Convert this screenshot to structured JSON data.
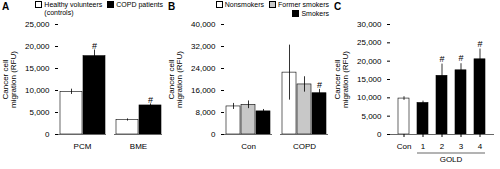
{
  "chart_data": [
    {
      "type": "bar",
      "title": "A",
      "categories": [
        "PCM",
        "BME"
      ],
      "series": [
        {
          "name": "Healthy volunteers\n(controls)",
          "color": "white",
          "values": [
            9700,
            3300
          ],
          "errors": [
            600,
            250
          ]
        },
        {
          "name": "COPD patients",
          "color": "black",
          "values": [
            17800,
            6600
          ],
          "errors": [
            1400,
            350
          ]
        }
      ],
      "ylabel": "Cancer cell\nmigration (RFU)",
      "ylim": [
        0,
        25000
      ],
      "yticks": [
        0,
        {
          "value": 5000,
          "label": "5,000"
        },
        {
          "value": 10000,
          "label": "10,000"
        },
        {
          "value": 15000,
          "label": "15,000"
        },
        {
          "value": 20000,
          "label": "20,000"
        },
        {
          "value": 25000,
          "label": "25,000"
        }
      ],
      "legend": "upper right",
      "annotations": [
        {
          "text": "#",
          "category": "PCM",
          "series": "COPD patients",
          "y": 19200
        },
        {
          "text": "#",
          "category": "BME",
          "series": "COPD patients",
          "y": 6950
        }
      ]
    },
    {
      "type": "bar",
      "title": "B",
      "categories": [
        "Con",
        "COPD"
      ],
      "series": [
        {
          "name": "Nonsmokers",
          "color": "white",
          "values": [
            10200,
            22500
          ],
          "errors": [
            1100,
            10000
          ]
        },
        {
          "name": "Former smokers",
          "color": "#c8c8c8",
          "values": [
            10800,
            18200
          ],
          "errors": [
            1400,
            2800
          ]
        },
        {
          "name": "Smokers",
          "color": "black",
          "values": [
            8400,
            15000
          ],
          "errors": [
            700,
            1400
          ]
        }
      ],
      "ylabel": "Cancer cell\nmigration (RFU)",
      "ylim": [
        0,
        40000
      ],
      "yticks": [
        0,
        {
          "value": 8000,
          "label": "8,000"
        },
        {
          "value": 16000,
          "label": "16,000"
        },
        {
          "value": 24000,
          "label": "24,000"
        },
        {
          "value": 32000,
          "label": "32,000"
        },
        {
          "value": 40000,
          "label": "40,000"
        }
      ],
      "legend": "upper right",
      "annotations": [
        {
          "text": "#",
          "category": "COPD",
          "series": "Smokers",
          "y": 16600
        }
      ]
    },
    {
      "type": "bar",
      "title": "C",
      "categories": [
        "Con",
        "1",
        "2",
        "3",
        "4"
      ],
      "values": [
        9800,
        8600,
        16000,
        17500,
        20500
      ],
      "errors": [
        500,
        500,
        3200,
        1800,
        2800
      ],
      "colors": [
        "white",
        "black",
        "black",
        "black",
        "black"
      ],
      "ylabel": "Cancer cell\nmigration (RFU)",
      "ylim": [
        0,
        30000
      ],
      "yticks": [
        0,
        {
          "value": 5000,
          "label": "5,000"
        },
        {
          "value": 10000,
          "label": "10,000"
        },
        {
          "value": 15000,
          "label": "15,000"
        },
        {
          "value": 20000,
          "label": "20,000"
        },
        {
          "value": 25000,
          "label": "25,000"
        },
        {
          "value": 30000,
          "label": "30,000"
        }
      ],
      "annotations": [
        {
          "text": "#",
          "category": "2",
          "y": 19600
        },
        {
          "text": "#",
          "category": "3",
          "y": 19700
        },
        {
          "text": "#",
          "category": "4",
          "y": 23700
        },
        {
          "text": "GOLD",
          "from": "1",
          "to": "4"
        }
      ]
    }
  ]
}
